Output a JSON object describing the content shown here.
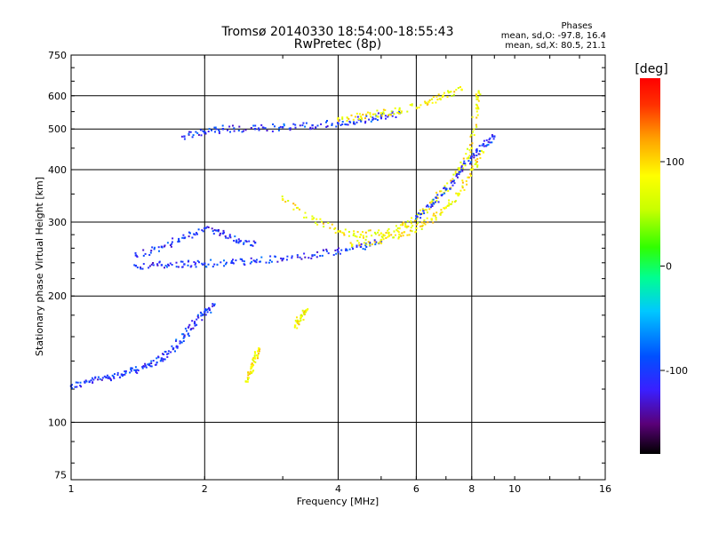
{
  "title": "Tromsø 20140330 18:54:00-18:55:43",
  "subtitle": "RwPretec (8p)",
  "phase_block": {
    "heading": "Phases",
    "o_line": "mean, sd,O: -97.8, 16.4",
    "x_line": "mean, sd,X:  80.5, 21.1"
  },
  "colorbar": {
    "unit_label": "[deg]",
    "range": [
      -180,
      180
    ],
    "ticks": [
      {
        "value": 100,
        "label": "100"
      },
      {
        "value": 0,
        "label": "0"
      },
      {
        "value": -100,
        "label": "-100"
      }
    ],
    "colormap": [
      "#000000",
      "#5a0078",
      "#3a1fff",
      "#0050ff",
      "#00c8ff",
      "#00ff90",
      "#30ff00",
      "#c8ff00",
      "#ffff00",
      "#ffa000",
      "#ff3000",
      "#ff0000"
    ]
  },
  "chart_data": {
    "type": "scatter",
    "xlabel": "Frequency [MHz]",
    "ylabel": "Stationary phase Virtual Height [km]",
    "xscale": "log",
    "yscale": "log",
    "xlim": [
      1,
      16
    ],
    "ylim": [
      73,
      750
    ],
    "grid": true,
    "xticks": [
      {
        "value": 1,
        "label": "1"
      },
      {
        "value": 2,
        "label": "2"
      },
      {
        "value": 4,
        "label": "4"
      },
      {
        "value": 6,
        "label": "6"
      },
      {
        "value": 8,
        "label": "8"
      },
      {
        "value": 10,
        "label": "10"
      },
      {
        "value": 16,
        "label": "16"
      }
    ],
    "xgrid": [
      2,
      4,
      6,
      8
    ],
    "yticks": [
      {
        "value": 75,
        "label": "75"
      },
      {
        "value": 100,
        "label": "100"
      },
      {
        "value": 200,
        "label": "200"
      },
      {
        "value": 300,
        "label": "300"
      },
      {
        "value": 400,
        "label": "400"
      },
      {
        "value": 500,
        "label": "500"
      },
      {
        "value": 600,
        "label": "600"
      },
      {
        "value": 750,
        "label": "750"
      }
    ],
    "ygrid": [
      100,
      200,
      300,
      400,
      500,
      600
    ],
    "traces": [
      {
        "name": "",
        "phase": -100,
        "points": [
          [
            1.0,
            122
          ],
          [
            1.1,
            125
          ],
          [
            1.2,
            128
          ],
          [
            1.3,
            130
          ],
          [
            1.4,
            133
          ],
          [
            1.5,
            137
          ],
          [
            1.6,
            142
          ],
          [
            1.7,
            150
          ],
          [
            1.8,
            160
          ],
          [
            1.9,
            172
          ],
          [
            2.0,
            183
          ],
          [
            2.1,
            190
          ]
        ]
      },
      {
        "name": "",
        "phase": -100,
        "points": [
          [
            1.4,
            236
          ],
          [
            1.6,
            237
          ],
          [
            1.8,
            238
          ],
          [
            2.0,
            239
          ],
          [
            2.3,
            240
          ],
          [
            2.6,
            242
          ],
          [
            3.0,
            245
          ],
          [
            3.5,
            250
          ],
          [
            4.0,
            255
          ],
          [
            4.5,
            262
          ],
          [
            5.0,
            270
          ]
        ]
      },
      {
        "name": "",
        "phase": -100,
        "points": [
          [
            1.4,
            250
          ],
          [
            1.6,
            262
          ],
          [
            1.8,
            275
          ],
          [
            2.0,
            290
          ],
          [
            2.2,
            282
          ],
          [
            2.4,
            270
          ],
          [
            2.6,
            268
          ]
        ]
      },
      {
        "name": "",
        "phase": -100,
        "points": [
          [
            1.8,
            480
          ],
          [
            2.0,
            490
          ],
          [
            2.2,
            500
          ],
          [
            2.6,
            500
          ],
          [
            3.0,
            505
          ],
          [
            3.5,
            510
          ],
          [
            4.0,
            515
          ],
          [
            4.5,
            525
          ],
          [
            5.0,
            535
          ],
          [
            5.5,
            545
          ]
        ]
      },
      {
        "name": "",
        "phase": 80,
        "points": [
          [
            3.0,
            340
          ],
          [
            3.5,
            305
          ],
          [
            4.0,
            285
          ],
          [
            4.5,
            280
          ],
          [
            5.0,
            282
          ],
          [
            5.5,
            290
          ],
          [
            6.0,
            305
          ],
          [
            6.5,
            335
          ],
          [
            7.0,
            360
          ],
          [
            7.5,
            400
          ],
          [
            8.0,
            450
          ],
          [
            8.2,
            560
          ],
          [
            8.3,
            610
          ]
        ]
      },
      {
        "name": "",
        "phase": 80,
        "points": [
          [
            4.3,
            265
          ],
          [
            5.0,
            272
          ],
          [
            5.5,
            280
          ],
          [
            6.0,
            290
          ],
          [
            6.5,
            305
          ],
          [
            7.0,
            325
          ],
          [
            7.5,
            350
          ],
          [
            8.0,
            400
          ],
          [
            8.5,
            440
          ]
        ]
      },
      {
        "name": "",
        "phase": -100,
        "points": [
          [
            6.0,
            310
          ],
          [
            6.5,
            330
          ],
          [
            7.0,
            360
          ],
          [
            7.5,
            395
          ],
          [
            8.0,
            430
          ],
          [
            8.5,
            460
          ],
          [
            9.0,
            480
          ]
        ]
      },
      {
        "name": "",
        "phase": 80,
        "points": [
          [
            4.0,
            530
          ],
          [
            4.5,
            535
          ],
          [
            5.0,
            545
          ],
          [
            5.5,
            555
          ],
          [
            6.4,
            580
          ],
          [
            6.9,
            600
          ],
          [
            7.6,
            620
          ]
        ]
      },
      {
        "name": "",
        "phase": 80,
        "points": [
          [
            2.5,
            125
          ],
          [
            2.55,
            135
          ],
          [
            2.6,
            142
          ],
          [
            2.65,
            150
          ]
        ]
      },
      {
        "name": "",
        "phase": 80,
        "points": [
          [
            3.2,
            170
          ],
          [
            3.3,
            178
          ],
          [
            3.4,
            185
          ]
        ]
      }
    ]
  }
}
